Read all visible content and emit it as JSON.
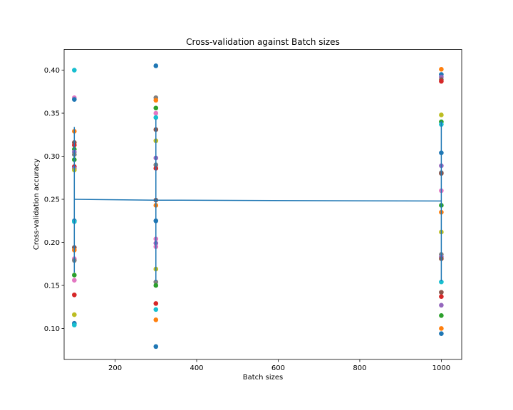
{
  "chart_data": {
    "type": "scatter",
    "title": "Cross-validation against Batch sizes",
    "xlabel": "Batch sizes",
    "ylabel": "Cross-validation accuracy",
    "xlim": [
      75,
      1050
    ],
    "ylim": [
      0.064,
      0.424
    ],
    "xticks": [
      "200",
      "400",
      "600",
      "800",
      "1000"
    ],
    "yticks": [
      "0.10",
      "0.15",
      "0.20",
      "0.25",
      "0.30",
      "0.35",
      "0.40"
    ],
    "grid": false,
    "point_palette": [
      "#1f77b4",
      "#ff7f0e",
      "#2ca02c",
      "#d62728",
      "#9467bd",
      "#8c564b",
      "#e377c2",
      "#7f7f7f",
      "#bcbd22",
      "#17becf"
    ],
    "points": [
      {
        "x": 100,
        "y": 0.4,
        "color": "#17becf"
      },
      {
        "x": 100,
        "y": 0.368,
        "color": "#e377c2"
      },
      {
        "x": 100,
        "y": 0.366,
        "color": "#1f77b4"
      },
      {
        "x": 100,
        "y": 0.329,
        "color": "#ff7f0e"
      },
      {
        "x": 100,
        "y": 0.316,
        "color": "#8c564b"
      },
      {
        "x": 100,
        "y": 0.313,
        "color": "#d62728"
      },
      {
        "x": 100,
        "y": 0.308,
        "color": "#2ca02c"
      },
      {
        "x": 100,
        "y": 0.305,
        "color": "#9467bd"
      },
      {
        "x": 100,
        "y": 0.302,
        "color": "#7f7f7f"
      },
      {
        "x": 100,
        "y": 0.296,
        "color": "#2ca02c"
      },
      {
        "x": 100,
        "y": 0.288,
        "color": "#d62728"
      },
      {
        "x": 100,
        "y": 0.286,
        "color": "#9467bd"
      },
      {
        "x": 100,
        "y": 0.284,
        "color": "#bcbd22"
      },
      {
        "x": 100,
        "y": 0.225,
        "color": "#1f77b4"
      },
      {
        "x": 100,
        "y": 0.224,
        "color": "#17becf"
      },
      {
        "x": 100,
        "y": 0.194,
        "color": "#8c564b"
      },
      {
        "x": 100,
        "y": 0.191,
        "color": "#ff7f0e"
      },
      {
        "x": 100,
        "y": 0.181,
        "color": "#e377c2"
      },
      {
        "x": 100,
        "y": 0.179,
        "color": "#7f7f7f"
      },
      {
        "x": 100,
        "y": 0.162,
        "color": "#2ca02c"
      },
      {
        "x": 100,
        "y": 0.156,
        "color": "#e377c2"
      },
      {
        "x": 100,
        "y": 0.139,
        "color": "#d62728"
      },
      {
        "x": 100,
        "y": 0.116,
        "color": "#bcbd22"
      },
      {
        "x": 100,
        "y": 0.106,
        "color": "#1f77b4"
      },
      {
        "x": 100,
        "y": 0.104,
        "color": "#17becf"
      },
      {
        "x": 300,
        "y": 0.405,
        "color": "#1f77b4"
      },
      {
        "x": 300,
        "y": 0.368,
        "color": "#7f7f7f"
      },
      {
        "x": 300,
        "y": 0.365,
        "color": "#ff7f0e"
      },
      {
        "x": 300,
        "y": 0.356,
        "color": "#2ca02c"
      },
      {
        "x": 300,
        "y": 0.35,
        "color": "#e377c2"
      },
      {
        "x": 300,
        "y": 0.345,
        "color": "#17becf"
      },
      {
        "x": 300,
        "y": 0.331,
        "color": "#8c564b"
      },
      {
        "x": 300,
        "y": 0.318,
        "color": "#bcbd22"
      },
      {
        "x": 300,
        "y": 0.298,
        "color": "#9467bd"
      },
      {
        "x": 300,
        "y": 0.29,
        "color": "#7f7f7f"
      },
      {
        "x": 300,
        "y": 0.286,
        "color": "#d62728"
      },
      {
        "x": 300,
        "y": 0.249,
        "color": "#8c564b"
      },
      {
        "x": 300,
        "y": 0.243,
        "color": "#ff7f0e"
      },
      {
        "x": 300,
        "y": 0.225,
        "color": "#1f77b4"
      },
      {
        "x": 300,
        "y": 0.204,
        "color": "#e377c2"
      },
      {
        "x": 300,
        "y": 0.199,
        "color": "#9467bd"
      },
      {
        "x": 300,
        "y": 0.195,
        "color": "#e377c2"
      },
      {
        "x": 300,
        "y": 0.169,
        "color": "#bcbd22"
      },
      {
        "x": 300,
        "y": 0.154,
        "color": "#7f7f7f"
      },
      {
        "x": 300,
        "y": 0.15,
        "color": "#2ca02c"
      },
      {
        "x": 300,
        "y": 0.129,
        "color": "#d62728"
      },
      {
        "x": 300,
        "y": 0.122,
        "color": "#17becf"
      },
      {
        "x": 300,
        "y": 0.11,
        "color": "#ff7f0e"
      },
      {
        "x": 300,
        "y": 0.079,
        "color": "#1f77b4"
      },
      {
        "x": 1000,
        "y": 0.401,
        "color": "#ff7f0e"
      },
      {
        "x": 1000,
        "y": 0.395,
        "color": "#1f77b4"
      },
      {
        "x": 1000,
        "y": 0.392,
        "color": "#9467bd"
      },
      {
        "x": 1000,
        "y": 0.389,
        "color": "#8c564b"
      },
      {
        "x": 1000,
        "y": 0.387,
        "color": "#d62728"
      },
      {
        "x": 1000,
        "y": 0.348,
        "color": "#bcbd22"
      },
      {
        "x": 1000,
        "y": 0.34,
        "color": "#2ca02c"
      },
      {
        "x": 1000,
        "y": 0.337,
        "color": "#17becf"
      },
      {
        "x": 1000,
        "y": 0.304,
        "color": "#1f77b4"
      },
      {
        "x": 1000,
        "y": 0.289,
        "color": "#9467bd"
      },
      {
        "x": 1000,
        "y": 0.281,
        "color": "#7f7f7f"
      },
      {
        "x": 1000,
        "y": 0.28,
        "color": "#8c564b"
      },
      {
        "x": 1000,
        "y": 0.26,
        "color": "#e377c2"
      },
      {
        "x": 1000,
        "y": 0.243,
        "color": "#2ca02c"
      },
      {
        "x": 1000,
        "y": 0.235,
        "color": "#ff7f0e"
      },
      {
        "x": 1000,
        "y": 0.212,
        "color": "#bcbd22"
      },
      {
        "x": 1000,
        "y": 0.186,
        "color": "#7f7f7f"
      },
      {
        "x": 1000,
        "y": 0.183,
        "color": "#9467bd"
      },
      {
        "x": 1000,
        "y": 0.181,
        "color": "#8c564b"
      },
      {
        "x": 1000,
        "y": 0.154,
        "color": "#17becf"
      },
      {
        "x": 1000,
        "y": 0.142,
        "color": "#8c564b"
      },
      {
        "x": 1000,
        "y": 0.137,
        "color": "#d62728"
      },
      {
        "x": 1000,
        "y": 0.127,
        "color": "#9467bd"
      },
      {
        "x": 1000,
        "y": 0.115,
        "color": "#2ca02c"
      },
      {
        "x": 1000,
        "y": 0.1,
        "color": "#ff7f0e"
      },
      {
        "x": 1000,
        "y": 0.094,
        "color": "#1f77b4"
      }
    ],
    "mean_line": {
      "color": "#1f77b4",
      "x": [
        100,
        300,
        1000
      ],
      "y": [
        0.25,
        0.249,
        0.248
      ],
      "error": [
        [
          0.165,
          0.334
        ],
        [
          0.155,
          0.343
        ],
        [
          0.155,
          0.341
        ]
      ]
    }
  }
}
